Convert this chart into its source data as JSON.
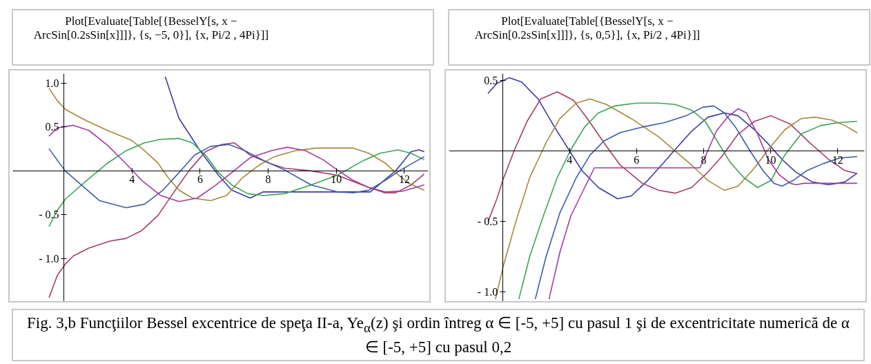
{
  "chart_data": [
    {
      "type": "line",
      "title": "Plot[Evaluate[Table[{BesselY[s, x − ArcSin[0.2sSin[x]]]}, {s, −5, 0}], {x, Pi/2 , 4Pi}]]",
      "annotations": [
        "Fig. 3,b  Funcţiilor Bessel excentrice de speţa II-a,  Ye$_{α}$(z) şi ordin întreg α ∈ [-5, +5] cu pasul 1 şi de excentricitate numerică de α ∈ [-5, +5] cu pasul 0,2"
      ],
      "xlim": [
        0.5,
        12.7
      ],
      "ylim": [
        -1.49,
        1.11
      ],
      "xticks": [
        4,
        6,
        8,
        10,
        12
      ],
      "yticks": [
        {
          "value": -1,
          "label": "- 1.0"
        },
        {
          "value": -0.5,
          "label": "- 0.5"
        },
        {
          "value": 0.5,
          "label": "0.5"
        },
        {
          "value": 1,
          "label": "1.0"
        }
      ],
      "series": [
        {
          "color": "#3b3ba3",
          "x": [
            4.98,
            5.38,
            6.0,
            6.54,
            6.93,
            7.47,
            7.86,
            11.0,
            11.74,
            12.2,
            12.43,
            12.57
          ],
          "values": [
            1.07,
            0.6,
            0.23,
            -0.05,
            -0.22,
            -0.31,
            -0.24,
            -0.24,
            0.0,
            0.22,
            0.24,
            0.22
          ]
        },
        {
          "color": "#a33b70",
          "x": [
            1.57,
            1.81,
            2.05,
            2.28,
            2.74,
            3.36,
            3.83,
            4.29,
            4.76,
            5.22,
            5.69,
            6.16,
            6.62,
            7.01,
            7.47,
            8.02,
            8.48,
            9.26,
            10.03,
            10.42,
            10.96,
            11.43,
            11.74,
            12.2,
            12.57
          ],
          "values": [
            -1.44,
            -1.19,
            -1.06,
            -0.97,
            -0.88,
            -0.8,
            -0.77,
            -0.68,
            -0.51,
            -0.25,
            0.01,
            0.22,
            0.3,
            0.32,
            0.18,
            0.09,
            0.03,
            0.0,
            -0.05,
            -0.11,
            -0.19,
            -0.25,
            -0.25,
            -0.16,
            -0.04
          ]
        },
        {
          "color": "#a3893b",
          "x": [
            1.57,
            1.81,
            2.05,
            2.67,
            3.29,
            3.98,
            4.37,
            4.76,
            5.07,
            5.38,
            5.77,
            6.31,
            6.78,
            7.24,
            7.71,
            8.17,
            8.79,
            9.41,
            10.03,
            10.5,
            10.96,
            11.43,
            11.74,
            12.12,
            12.57
          ],
          "values": [
            0.94,
            0.8,
            0.7,
            0.57,
            0.46,
            0.35,
            0.23,
            0.09,
            -0.08,
            -0.22,
            -0.31,
            -0.34,
            -0.28,
            -0.08,
            0.06,
            0.16,
            0.23,
            0.26,
            0.26,
            0.26,
            0.2,
            0.09,
            -0.02,
            -0.14,
            -0.22
          ]
        },
        {
          "color": "#3ba356",
          "x": [
            1.57,
            1.81,
            2.05,
            2.67,
            3.29,
            3.83,
            4.37,
            4.84,
            5.38,
            5.77,
            6.16,
            6.54,
            6.93,
            7.4,
            7.86,
            8.48,
            9.26,
            10.03,
            10.81,
            11.27,
            11.81,
            12.2,
            12.57
          ],
          "values": [
            -0.63,
            -0.45,
            -0.32,
            -0.11,
            0.09,
            0.23,
            0.32,
            0.36,
            0.37,
            0.32,
            0.18,
            -0.02,
            -0.16,
            -0.26,
            -0.28,
            -0.26,
            -0.16,
            -0.05,
            0.12,
            0.2,
            0.24,
            0.2,
            0.13
          ]
        },
        {
          "color": "#3b5ba8",
          "x": [
            1.57,
            1.81,
            2.04,
            2.51,
            3.05,
            3.83,
            4.37,
            4.91,
            5.38,
            5.84,
            6.31,
            6.85,
            7.32,
            7.86,
            8.48,
            9.26,
            10.03,
            10.5,
            10.96,
            11.43,
            11.89,
            12.57
          ],
          "values": [
            0.25,
            0.12,
            0.0,
            -0.16,
            -0.34,
            -0.42,
            -0.38,
            -0.22,
            -0.02,
            0.18,
            0.28,
            0.3,
            0.23,
            0.12,
            0.01,
            -0.16,
            -0.24,
            -0.25,
            -0.22,
            -0.11,
            0.01,
            0.16
          ]
        },
        {
          "color": "#a33ba3",
          "x": [
            1.57,
            1.81,
            2.28,
            2.74,
            3.29,
            3.83,
            4.29,
            4.84,
            5.38,
            5.92,
            6.47,
            6.93,
            7.47,
            8.09,
            8.56,
            9.1,
            9.64,
            10.03,
            10.5,
            10.96,
            11.43,
            11.97,
            12.57
          ],
          "values": [
            0.4,
            0.49,
            0.52,
            0.46,
            0.29,
            0.08,
            -0.11,
            -0.28,
            -0.35,
            -0.31,
            -0.16,
            -0.02,
            0.15,
            0.23,
            0.27,
            0.23,
            0.12,
            0.01,
            -0.11,
            -0.19,
            -0.24,
            -0.23,
            -0.16
          ]
        }
      ]
    },
    {
      "type": "line",
      "title": "Plot[Evaluate[Table[{BesselY[s, x − ArcSin[0.2sSin[x]]]}, {s, 0,5}], {x, Pi/2 , 4Pi}]]",
      "xlim": [
        0.4,
        12.8
      ],
      "ylim": [
        -1.07,
        0.55
      ],
      "xticks": [
        4,
        6,
        8,
        10,
        12
      ],
      "yticks": [
        {
          "value": -1,
          "label": "- 1.0"
        },
        {
          "value": -0.5,
          "label": "- 0.5"
        },
        {
          "value": 0.5,
          "label": "0.5"
        }
      ],
      "series": [
        {
          "color": "#3b3ba3",
          "x": [
            1.57,
            1.83,
            2.2,
            2.57,
            3.06,
            3.55,
            4.0,
            4.37,
            4.86,
            5.43,
            5.84,
            6.33,
            6.82,
            7.15,
            7.64,
            8.13,
            8.62,
            9.03,
            9.52,
            9.93,
            10.34,
            10.75,
            11.24,
            11.73,
            12.22,
            12.57
          ],
          "values": [
            0.41,
            0.48,
            0.52,
            0.49,
            0.37,
            0.17,
            0.0,
            -0.14,
            -0.26,
            -0.34,
            -0.32,
            -0.21,
            -0.08,
            0.01,
            0.14,
            0.24,
            0.27,
            0.25,
            0.15,
            0.05,
            -0.06,
            -0.15,
            -0.22,
            -0.24,
            -0.22,
            -0.16
          ]
        },
        {
          "color": "#a33b70",
          "x": [
            1.57,
            1.83,
            2.02,
            2.36,
            2.73,
            3.14,
            3.63,
            4.12,
            4.53,
            5.02,
            5.51,
            6.17,
            6.66,
            7.15,
            7.64,
            8.13,
            8.54,
            9.03,
            9.52,
            10.01,
            10.59,
            11.16,
            11.73,
            12.22,
            12.57
          ],
          "values": [
            -0.5,
            -0.34,
            -0.2,
            0.01,
            0.21,
            0.37,
            0.42,
            0.36,
            0.23,
            0.06,
            -0.1,
            -0.23,
            -0.28,
            -0.3,
            -0.26,
            -0.15,
            -0.04,
            0.12,
            0.21,
            0.25,
            0.19,
            0.06,
            -0.06,
            -0.14,
            -0.16
          ]
        },
        {
          "color": "#a3893b",
          "x": [
            1.79,
            2.02,
            2.4,
            2.81,
            3.3,
            3.71,
            4.2,
            4.61,
            5.1,
            5.84,
            6.66,
            7.15,
            7.64,
            8.13,
            8.62,
            9.03,
            9.52,
            9.93,
            10.42,
            10.91,
            11.32,
            11.82,
            12.22,
            12.57
          ],
          "values": [
            -1.05,
            -0.82,
            -0.5,
            -0.19,
            0.06,
            0.23,
            0.34,
            0.37,
            0.33,
            0.23,
            0.1,
            0.0,
            -0.1,
            -0.21,
            -0.28,
            -0.25,
            -0.12,
            0.01,
            0.15,
            0.23,
            0.24,
            0.22,
            0.18,
            0.13
          ]
        },
        {
          "color": "#3ba356",
          "x": [
            2.49,
            2.81,
            3.22,
            3.63,
            4.04,
            4.45,
            4.86,
            5.35,
            6.0,
            6.66,
            7.15,
            7.64,
            8.05,
            8.38,
            8.79,
            9.2,
            9.61,
            10.01,
            10.42,
            10.91,
            11.49,
            11.98,
            12.57
          ],
          "values": [
            -1.05,
            -0.75,
            -0.46,
            -0.19,
            0.01,
            0.17,
            0.27,
            0.32,
            0.34,
            0.34,
            0.33,
            0.29,
            0.21,
            0.08,
            -0.08,
            -0.19,
            -0.26,
            -0.21,
            -0.03,
            0.12,
            0.18,
            0.2,
            0.21
          ]
        },
        {
          "color": "#3b5ba8",
          "x": [
            2.98,
            3.3,
            3.71,
            4.2,
            4.61,
            5.02,
            5.51,
            6.17,
            6.82,
            7.48,
            7.97,
            8.3,
            8.62,
            8.95,
            9.36,
            9.77,
            10.1,
            10.34,
            10.67,
            11.08,
            11.57,
            12.06,
            12.57
          ],
          "values": [
            -1.05,
            -0.75,
            -0.44,
            -0.19,
            -0.03,
            0.07,
            0.13,
            0.17,
            0.2,
            0.25,
            0.31,
            0.32,
            0.27,
            0.17,
            0.01,
            -0.14,
            -0.23,
            -0.25,
            -0.21,
            -0.14,
            -0.09,
            -0.05,
            -0.04
          ]
        },
        {
          "color": "#a33ba3",
          "x": [
            3.39,
            3.71,
            4.04,
            4.45,
            4.74,
            7.89,
            8.05,
            8.38,
            8.71,
            9.03,
            9.28,
            9.61,
            9.93,
            10.26,
            10.59,
            10.75,
            11.0,
            12.57
          ],
          "values": [
            -1.05,
            -0.72,
            -0.46,
            -0.26,
            -0.12,
            -0.12,
            -0.04,
            0.14,
            0.24,
            0.3,
            0.27,
            0.12,
            -0.06,
            -0.17,
            -0.23,
            -0.24,
            -0.23,
            -0.23
          ]
        }
      ]
    }
  ]
}
